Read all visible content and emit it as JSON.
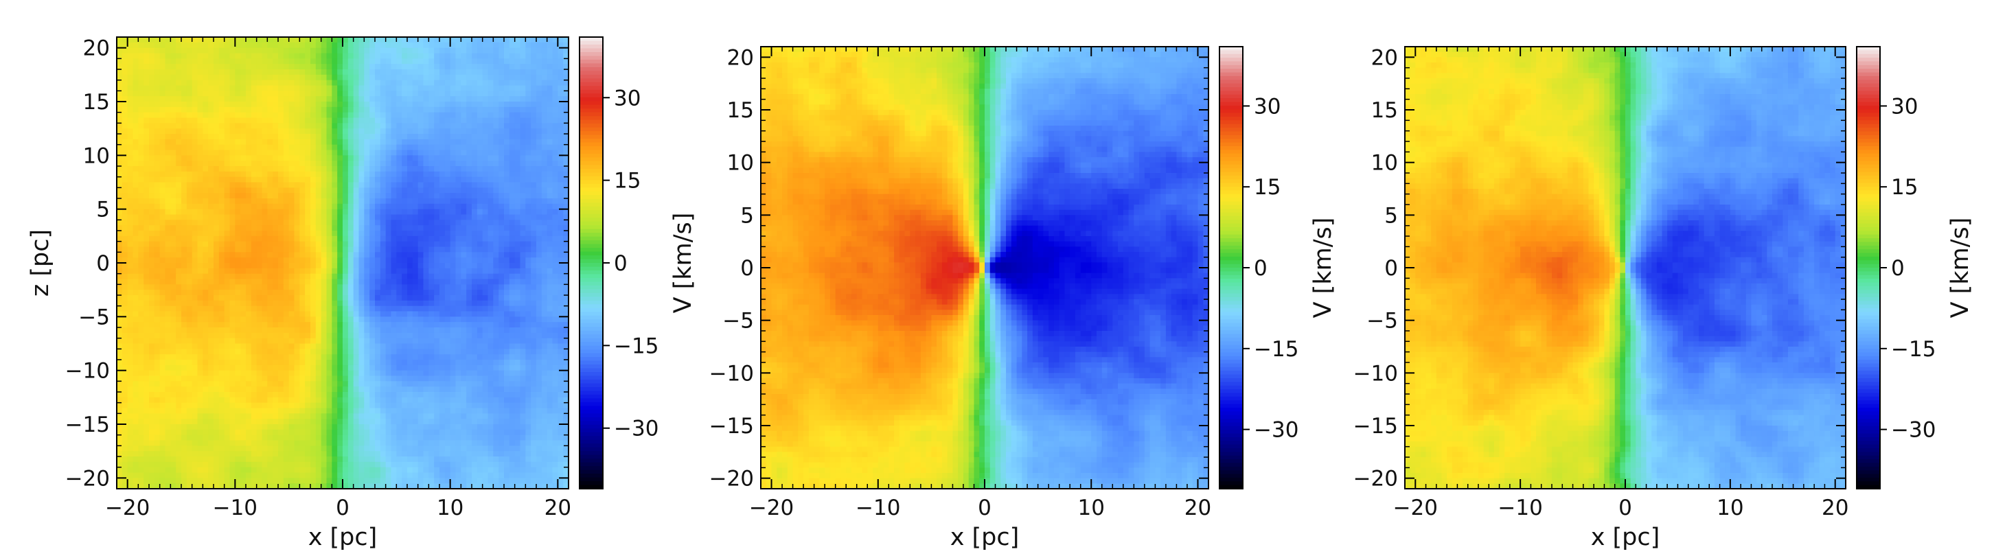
{
  "chart_data": [
    {
      "type": "heatmap",
      "xlabel": "x [pc]",
      "ylabel": "z [pc]",
      "xlim": [
        -21,
        21
      ],
      "ylim": [
        -21,
        21
      ],
      "xticks": [
        {
          "v": -20,
          "label": "−20"
        },
        {
          "v": -10,
          "label": "−10"
        },
        {
          "v": 0,
          "label": "0"
        },
        {
          "v": 10,
          "label": "10"
        },
        {
          "v": 20,
          "label": "20"
        }
      ],
      "yticks": [
        {
          "v": 20,
          "label": "20"
        },
        {
          "v": 15,
          "label": "15"
        },
        {
          "v": 10,
          "label": "10"
        },
        {
          "v": 5,
          "label": "5"
        },
        {
          "v": 0,
          "label": "0"
        },
        {
          "v": -5,
          "label": "−5"
        },
        {
          "v": -10,
          "label": "−10"
        },
        {
          "v": -15,
          "label": "−15"
        },
        {
          "v": -20,
          "label": "−20"
        }
      ],
      "colorbar": {
        "label": "V [km/s]",
        "range": [
          -41,
          41
        ],
        "ticks": [
          {
            "v": 30,
            "label": "30"
          },
          {
            "v": 15,
            "label": "15"
          },
          {
            "v": 0,
            "label": "0"
          },
          {
            "v": -15,
            "label": "−15"
          },
          {
            "v": -30,
            "label": "−30"
          }
        ]
      },
      "field": {
        "amplitude": 22,
        "center_peak": 0,
        "velocity_gradient": "positive on left (x<0), negative on right (x>0)",
        "noise": 9
      }
    },
    {
      "type": "heatmap",
      "xlabel": "x [pc]",
      "ylabel": "",
      "xlim": [
        -21,
        21
      ],
      "ylim": [
        -21,
        21
      ],
      "xticks": [
        {
          "v": -20,
          "label": "−20"
        },
        {
          "v": -10,
          "label": "−10"
        },
        {
          "v": 0,
          "label": "0"
        },
        {
          "v": 10,
          "label": "10"
        },
        {
          "v": 20,
          "label": "20"
        }
      ],
      "yticks": [
        {
          "v": 20,
          "label": "20"
        },
        {
          "v": 15,
          "label": "15"
        },
        {
          "v": 10,
          "label": "10"
        },
        {
          "v": 5,
          "label": "5"
        },
        {
          "v": 0,
          "label": "0"
        },
        {
          "v": -5,
          "label": "−5"
        },
        {
          "v": -10,
          "label": "−10"
        },
        {
          "v": -15,
          "label": "−15"
        },
        {
          "v": -20,
          "label": "−20"
        }
      ],
      "colorbar": {
        "label": "V [km/s]",
        "range": [
          -41,
          41
        ],
        "ticks": [
          {
            "v": 30,
            "label": "30"
          },
          {
            "v": 15,
            "label": "15"
          },
          {
            "v": 0,
            "label": "0"
          },
          {
            "v": -15,
            "label": "−15"
          },
          {
            "v": -30,
            "label": "−30"
          }
        ]
      },
      "field": {
        "amplitude": 28,
        "center_peak": 45,
        "velocity_gradient": "positive on left (x<0), negative on right (x>0)",
        "noise": 8
      }
    },
    {
      "type": "heatmap",
      "xlabel": "x [pc]",
      "ylabel": "",
      "xlim": [
        -21,
        21
      ],
      "ylim": [
        -21,
        21
      ],
      "xticks": [
        {
          "v": -20,
          "label": "−20"
        },
        {
          "v": -10,
          "label": "−10"
        },
        {
          "v": 0,
          "label": "0"
        },
        {
          "v": 10,
          "label": "10"
        },
        {
          "v": 20,
          "label": "20"
        }
      ],
      "yticks": [
        {
          "v": 20,
          "label": "20"
        },
        {
          "v": 15,
          "label": "15"
        },
        {
          "v": 10,
          "label": "10"
        },
        {
          "v": 5,
          "label": "5"
        },
        {
          "v": 0,
          "label": "0"
        },
        {
          "v": -5,
          "label": "−5"
        },
        {
          "v": -10,
          "label": "−10"
        },
        {
          "v": -15,
          "label": "−15"
        },
        {
          "v": -20,
          "label": "−20"
        }
      ],
      "colorbar": {
        "label": "V [km/s]",
        "range": [
          -41,
          41
        ],
        "ticks": [
          {
            "v": 30,
            "label": "30"
          },
          {
            "v": 15,
            "label": "15"
          },
          {
            "v": 0,
            "label": "0"
          },
          {
            "v": -15,
            "label": "−15"
          },
          {
            "v": -30,
            "label": "−30"
          }
        ]
      },
      "field": {
        "amplitude": 24,
        "center_peak": 22,
        "velocity_gradient": "positive on left (x<0), negative on right (x>0)",
        "noise": 8
      }
    }
  ]
}
